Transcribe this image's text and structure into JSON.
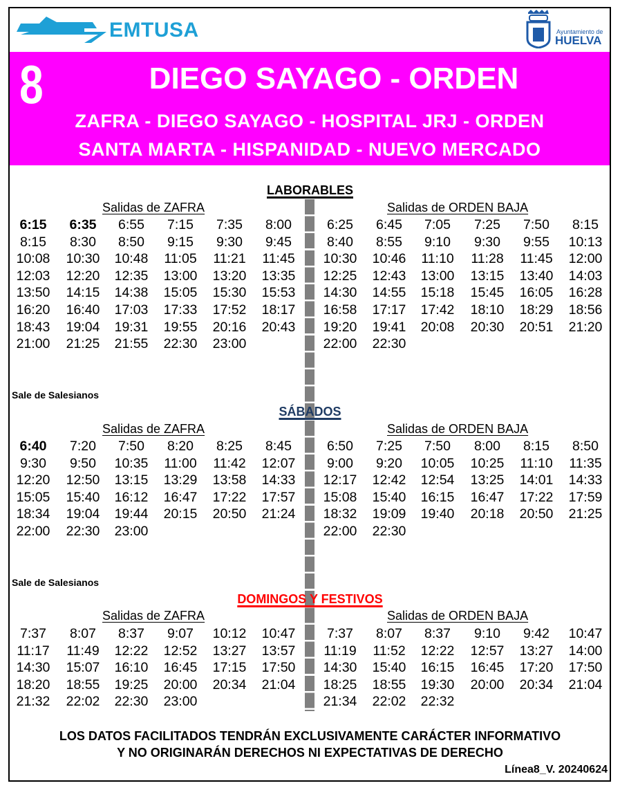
{
  "header": {
    "brand": "EMTUSA",
    "council_small": "Ayuntamiento de",
    "council_big": "HUELVA",
    "brand_color": "#1ea0d6",
    "band_color": "#ff00ff"
  },
  "line": {
    "number": "8",
    "title": "DIEGO SAYAGO - ORDEN",
    "route_1": "ZAFRA - DIEGO SAYAGO - HOSPITAL JRJ - ORDEN",
    "route_2": "SANTA MARTA - HISPANIDAD - NUEVO MERCADO"
  },
  "sections": [
    {
      "title": "LABORABLES",
      "title_color": "#000000",
      "note": "",
      "left_label": "Salidas de ZAFRA",
      "right_label": "Salidas de ORDEN BAJA",
      "left": [
        "6:15",
        "6:35",
        "6:55",
        "7:15",
        "7:35",
        "8:00",
        "8:15",
        "8:30",
        "8:50",
        "9:15",
        "9:30",
        "9:45",
        "10:08",
        "10:30",
        "10:48",
        "11:05",
        "11:21",
        "11:45",
        "12:03",
        "12:20",
        "12:35",
        "13:00",
        "13:20",
        "13:35",
        "13:50",
        "14:15",
        "14:38",
        "15:05",
        "15:30",
        "15:53",
        "16:20",
        "16:40",
        "17:03",
        "17:33",
        "17:52",
        "18:17",
        "18:43",
        "19:04",
        "19:31",
        "19:55",
        "20:16",
        "20:43",
        "21:00",
        "21:25",
        "21:55",
        "22:30",
        "23:00"
      ],
      "right": [
        "6:25",
        "6:45",
        "7:05",
        "7:25",
        "7:50",
        "8:15",
        "8:40",
        "8:55",
        "9:10",
        "9:30",
        "9:55",
        "10:13",
        "10:30",
        "10:46",
        "11:10",
        "11:28",
        "11:45",
        "12:00",
        "12:25",
        "12:43",
        "13:00",
        "13:15",
        "13:40",
        "14:03",
        "14:30",
        "14:55",
        "15:18",
        "15:45",
        "16:05",
        "16:28",
        "16:58",
        "17:17",
        "17:42",
        "18:10",
        "18:29",
        "18:56",
        "19:20",
        "19:41",
        "20:08",
        "20:30",
        "20:51",
        "21:20",
        "22:00",
        "22:30"
      ],
      "bold_left": [
        0,
        1
      ]
    },
    {
      "title": "SÁBADOS",
      "title_color": "#1f3b63",
      "note": "Sale de Salesianos",
      "left_label": "Salidas de ZAFRA",
      "right_label": "Salidas de ORDEN BAJA",
      "left": [
        "6:40",
        "7:20",
        "7:50",
        "8:20",
        "8:25",
        "8:45",
        "9:30",
        "9:50",
        "10:35",
        "11:00",
        "11:42",
        "12:07",
        "12:20",
        "12:50",
        "13:15",
        "13:29",
        "13:58",
        "14:33",
        "15:05",
        "15:40",
        "16:12",
        "16:47",
        "17:22",
        "17:57",
        "18:34",
        "19:04",
        "19:44",
        "20:15",
        "20:50",
        "21:24",
        "22:00",
        "22:30",
        "23:00"
      ],
      "right": [
        "6:50",
        "7:25",
        "7:50",
        "8:00",
        "8:15",
        "8:50",
        "9:00",
        "9:20",
        "10:05",
        "10:25",
        "11:10",
        "11:35",
        "12:17",
        "12:42",
        "12:54",
        "13:25",
        "14:01",
        "14:33",
        "15:08",
        "15:40",
        "16:15",
        "16:47",
        "17:22",
        "17:59",
        "18:32",
        "19:09",
        "19:40",
        "20:18",
        "20:50",
        "21:25",
        "22:00",
        "22:30"
      ],
      "bold_left": [
        0
      ]
    },
    {
      "title": "DOMINGOS Y FESTIVOS",
      "title_color": "#ff0000",
      "note": "Sale de Salesianos",
      "left_label": "Salidas de ZAFRA",
      "right_label": "Salidas de ORDEN BAJA",
      "left": [
        "7:37",
        "8:07",
        "8:37",
        "9:07",
        "10:12",
        "10:47",
        "11:17",
        "11:49",
        "12:22",
        "12:52",
        "13:27",
        "13:57",
        "14:30",
        "15:07",
        "16:10",
        "16:45",
        "17:15",
        "17:50",
        "18:20",
        "18:55",
        "19:25",
        "20:00",
        "20:34",
        "21:04",
        "21:32",
        "22:02",
        "22:30",
        "23:00"
      ],
      "right": [
        "7:37",
        "8:07",
        "8:37",
        "9:10",
        "9:42",
        "10:47",
        "11:19",
        "11:52",
        "12:22",
        "12:57",
        "13:27",
        "14:00",
        "14:30",
        "15:40",
        "16:15",
        "16:45",
        "17:20",
        "17:50",
        "18:25",
        "18:55",
        "19:30",
        "20:00",
        "20:34",
        "21:04",
        "21:34",
        "22:02",
        "22:32"
      ],
      "bold_left": []
    }
  ],
  "footer": {
    "disclaimer_1": "LOS DATOS FACILITADOS TENDRÁN EXCLUSIVAMENTE CARÁCTER INFORMATIVO",
    "disclaimer_2": "Y NO ORIGINARÁN DERECHOS NI EXPECTATIVAS DE DERECHO",
    "version": "Línea8_V. 20240624"
  }
}
